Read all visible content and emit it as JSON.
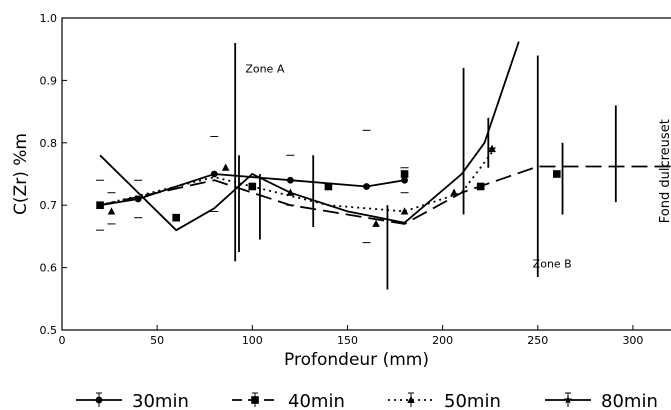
{
  "chart_data": {
    "type": "line",
    "xlabel": "Profondeur (mm)",
    "ylabel": "C(Zr) %m",
    "xlim": [
      0,
      320
    ],
    "ylim": [
      0.5,
      1.0
    ],
    "x_ticks": [
      0,
      50,
      100,
      150,
      200,
      250,
      300
    ],
    "y_ticks": [
      0.5,
      0.6,
      0.7,
      0.8,
      0.9,
      1.0
    ],
    "legend_position": "bottom",
    "annotations": [
      {
        "text": "Zone A",
        "x": 100,
        "y": 0.913
      },
      {
        "text": "Zone B",
        "x": 251,
        "y": 0.6
      },
      {
        "text": "Fond dulcreuset",
        "x": 320,
        "y": 0.7,
        "rotated": true
      }
    ],
    "series": [
      {
        "name": "30min",
        "style": "solid",
        "marker": "circle",
        "x": [
          20,
          40,
          80,
          120,
          160,
          180
        ],
        "y": [
          0.7,
          0.71,
          0.75,
          0.74,
          0.73,
          0.74
        ]
      },
      {
        "name": "40min",
        "style": "dashed",
        "marker": "square",
        "x": [
          20,
          60,
          100,
          140,
          180,
          220,
          260
        ],
        "y": [
          0.7,
          0.68,
          0.73,
          0.73,
          0.75,
          0.73,
          0.75
        ]
      },
      {
        "name": "50min",
        "style": "dotted",
        "marker": "triangle",
        "x": [
          26,
          86,
          120,
          165,
          180,
          206,
          226
        ],
        "y": [
          0.69,
          0.76,
          0.72,
          0.67,
          0.69,
          0.72,
          0.79
        ]
      },
      {
        "name": "80min",
        "style": "solid",
        "marker": "star",
        "x": [
          226
        ],
        "y": [
          0.79
        ]
      }
    ],
    "fit_lines": [
      {
        "style": "solid",
        "x": [
          20,
          60,
          80,
          100,
          120,
          150,
          180,
          210,
          222,
          240
        ],
        "y": [
          0.78,
          0.66,
          0.695,
          0.75,
          0.72,
          0.69,
          0.672,
          0.75,
          0.8,
          0.962
        ]
      },
      {
        "style": "dashed",
        "x": [
          20,
          80,
          120,
          160,
          180,
          210,
          250,
          320
        ],
        "y": [
          0.7,
          0.74,
          0.7,
          0.68,
          0.67,
          0.72,
          0.762,
          0.762
        ]
      },
      {
        "style": "dotted",
        "x": [
          20,
          80,
          100,
          140,
          180,
          210,
          226
        ],
        "y": [
          0.7,
          0.745,
          0.73,
          0.7,
          0.69,
          0.72,
          0.785
        ]
      }
    ],
    "error_bars": [
      {
        "x": 91,
        "ymin": 0.61,
        "ymax": 0.96
      },
      {
        "x": 93,
        "ymin": 0.625,
        "ymax": 0.78
      },
      {
        "x": 104,
        "ymin": 0.645,
        "ymax": 0.75
      },
      {
        "x": 132,
        "ymin": 0.665,
        "ymax": 0.78
      },
      {
        "x": 171,
        "ymin": 0.565,
        "ymax": 0.7
      },
      {
        "x": 211,
        "ymin": 0.685,
        "ymax": 0.92
      },
      {
        "x": 224,
        "ymin": 0.76,
        "ymax": 0.84
      },
      {
        "x": 250,
        "ymin": 0.585,
        "ymax": 0.94
      },
      {
        "x": 263,
        "ymin": 0.685,
        "ymax": 0.8
      },
      {
        "x": 291,
        "ymin": 0.705,
        "ymax": 0.86
      }
    ],
    "error_caps": [
      {
        "x": 20,
        "y": 0.74
      },
      {
        "x": 20,
        "y": 0.66
      },
      {
        "x": 26,
        "y": 0.72
      },
      {
        "x": 26,
        "y": 0.67
      },
      {
        "x": 40,
        "y": 0.74
      },
      {
        "x": 40,
        "y": 0.68
      },
      {
        "x": 80,
        "y": 0.81
      },
      {
        "x": 80,
        "y": 0.69
      },
      {
        "x": 120,
        "y": 0.78
      },
      {
        "x": 120,
        "y": 0.7
      },
      {
        "x": 160,
        "y": 0.82
      },
      {
        "x": 160,
        "y": 0.64
      },
      {
        "x": 180,
        "y": 0.76
      },
      {
        "x": 180,
        "y": 0.72
      }
    ]
  }
}
